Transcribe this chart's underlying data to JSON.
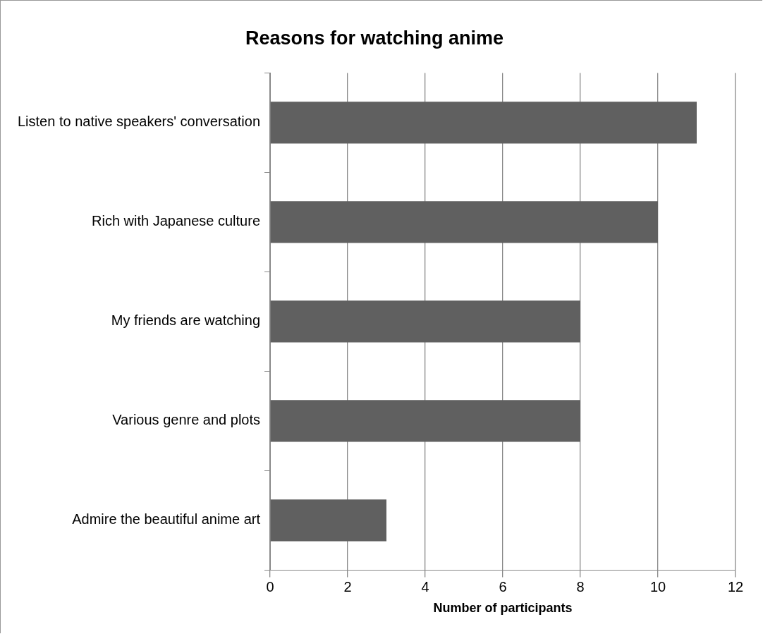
{
  "chart_data": {
    "type": "bar",
    "orientation": "horizontal",
    "title": "Reasons for watching anime",
    "xlabel": "Number of participants",
    "categories": [
      "Listen to native speakers' conversation",
      "Rich with Japanese culture",
      "My friends are watching",
      "Various genre and plots",
      "Admire the beautiful anime art"
    ],
    "values": [
      11,
      10,
      8,
      8,
      3
    ],
    "color": "#606060",
    "xlim": [
      0,
      12
    ],
    "xticks": [
      0,
      2,
      4,
      6,
      8,
      10,
      12
    ],
    "grid": "x",
    "legend": false
  }
}
